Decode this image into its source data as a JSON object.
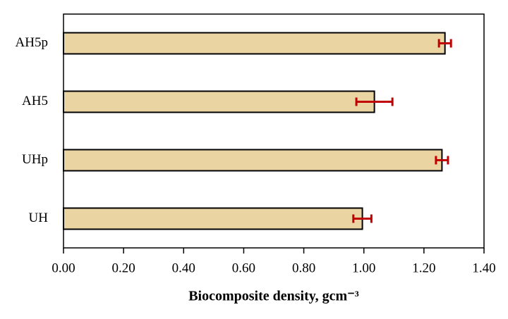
{
  "chart_data": {
    "type": "barh",
    "xlabel": "Biocomposite density, gcm⁻³",
    "categories": [
      "AH5p",
      "AH5",
      "UHp",
      "UH"
    ],
    "values": [
      1.27,
      1.035,
      1.26,
      0.995
    ],
    "errors": [
      0.02,
      0.06,
      0.02,
      0.03
    ],
    "color": "#ead5a2",
    "error_color": "#c00000",
    "xlim": [
      0,
      1.4
    ],
    "xticks": [
      {
        "value": 0,
        "label": "0.00"
      },
      {
        "value": 0.2,
        "label": "0.20"
      },
      {
        "value": 0.4,
        "label": "0.40"
      },
      {
        "value": 0.6,
        "label": "0.60"
      },
      {
        "value": 0.8,
        "label": "0.80"
      },
      {
        "value": 1,
        "label": "1.00"
      },
      {
        "value": 1.2,
        "label": "1.20"
      },
      {
        "value": 1.4,
        "label": "1.40"
      }
    ]
  }
}
